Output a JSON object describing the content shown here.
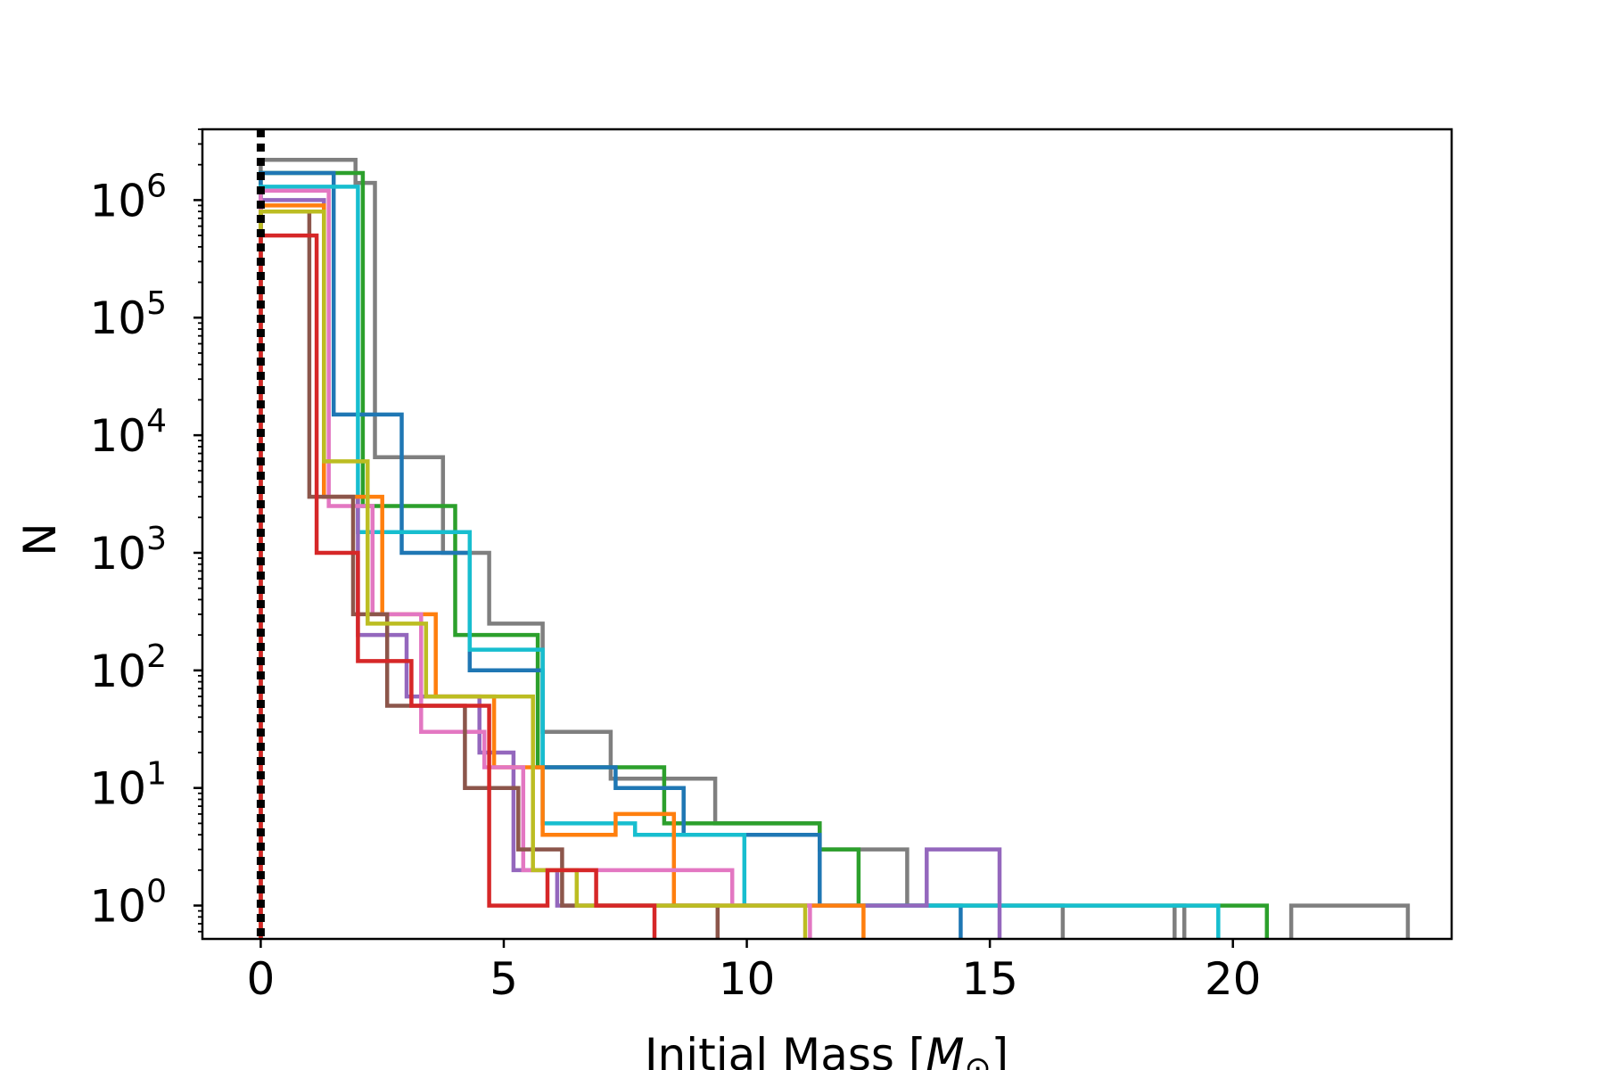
{
  "chart_data": {
    "type": "histogram-step",
    "xlabel": "Initial Mass [M⊙]",
    "ylabel": "N",
    "xlim": [
      -1.2,
      24.5
    ],
    "ylim": [
      0.52,
      4000000
    ],
    "yscale": "log",
    "grid": false,
    "x_ticks": [
      {
        "value": 0,
        "label": "0"
      },
      {
        "value": 5,
        "label": "5"
      },
      {
        "value": 10,
        "label": "10"
      },
      {
        "value": 15,
        "label": "15"
      },
      {
        "value": 20,
        "label": "20"
      }
    ],
    "y_ticks": [
      {
        "value": 1,
        "label": "10",
        "exp": "0"
      },
      {
        "value": 10,
        "label": "10",
        "exp": "1"
      },
      {
        "value": 100,
        "label": "10",
        "exp": "2"
      },
      {
        "value": 1000,
        "label": "10",
        "exp": "3"
      },
      {
        "value": 10000,
        "label": "10",
        "exp": "4"
      },
      {
        "value": 100000,
        "label": "10",
        "exp": "5"
      },
      {
        "value": 1000000,
        "label": "10",
        "exp": "6"
      }
    ],
    "reference_line": {
      "x": 0,
      "style": "dotted",
      "color": "#000000"
    },
    "series": [
      {
        "color": "#7f7f7f",
        "edges": [
          0,
          1.95,
          2.35,
          3.75,
          4.7,
          5.8,
          7.2,
          9.35,
          11.5,
          13.3,
          16.5
        ],
        "counts": [
          2200000,
          1400000,
          6500,
          1000,
          250,
          30,
          12,
          5,
          3,
          1
        ]
      },
      {
        "color": "#7f7f7f",
        "edges": [
          21.2,
          23.6
        ],
        "counts": [
          1
        ]
      },
      {
        "color": "#7f7f7f",
        "edges": [
          18.8,
          19.0
        ],
        "counts": [
          1
        ]
      },
      {
        "color": "#2ca02c",
        "edges": [
          0,
          2.1,
          4.0,
          5.7,
          8.3,
          11.5,
          12.3,
          16.5,
          20.7
        ],
        "counts": [
          1700000,
          2500,
          200,
          15,
          5,
          3,
          1,
          1
        ]
      },
      {
        "color": "#1f77b4",
        "edges": [
          0,
          1.5,
          2.9,
          4.3,
          5.8,
          7.3,
          8.7,
          11.5,
          14.4
        ],
        "counts": [
          1700000,
          15000,
          1000,
          100,
          15,
          10,
          4,
          1
        ]
      },
      {
        "color": "#17becf",
        "edges": [
          0,
          2.0,
          4.3,
          5.8,
          7.7,
          9.95,
          11.6,
          12.9,
          17.7,
          19.7
        ],
        "counts": [
          1300000,
          1500,
          150,
          5,
          4,
          1,
          1,
          1,
          1
        ]
      },
      {
        "color": "#9467bd",
        "edges": [
          0,
          1.3,
          2.0,
          3.0,
          4.5,
          5.2,
          6.1,
          13.7,
          15.2
        ],
        "counts": [
          1000000,
          3000,
          200,
          60,
          20,
          2,
          1,
          3
        ]
      },
      {
        "color": "#ff7f0e",
        "edges": [
          0,
          1.3,
          2.5,
          3.6,
          4.8,
          5.8,
          7.3,
          8.5,
          10.9,
          12.4
        ],
        "counts": [
          900000,
          3000,
          300,
          60,
          15,
          4,
          6,
          1,
          1
        ]
      },
      {
        "color": "#e377c2",
        "edges": [
          0,
          1.4,
          2.3,
          3.3,
          4.6,
          5.4,
          6.6,
          9.7,
          11.3
        ],
        "counts": [
          1200000,
          2500,
          300,
          30,
          15,
          2,
          2,
          1
        ]
      },
      {
        "color": "#8c564b",
        "edges": [
          0,
          1.0,
          1.9,
          2.6,
          4.2,
          5.3,
          6.2,
          7.6,
          9.4
        ],
        "counts": [
          800000,
          3000,
          300,
          50,
          10,
          3,
          1,
          1
        ]
      },
      {
        "color": "#bcbd22",
        "edges": [
          0,
          1.3,
          2.2,
          3.4,
          5.6,
          6.5,
          10.8,
          11.2
        ],
        "counts": [
          800000,
          6000,
          250,
          60,
          2,
          1,
          1
        ]
      },
      {
        "color": "#d62728",
        "edges": [
          0,
          1.15,
          2.0,
          3.1,
          4.7,
          5.9,
          6.9,
          8.1
        ],
        "counts": [
          500000,
          1000,
          120,
          50,
          1,
          2,
          1
        ]
      }
    ]
  }
}
